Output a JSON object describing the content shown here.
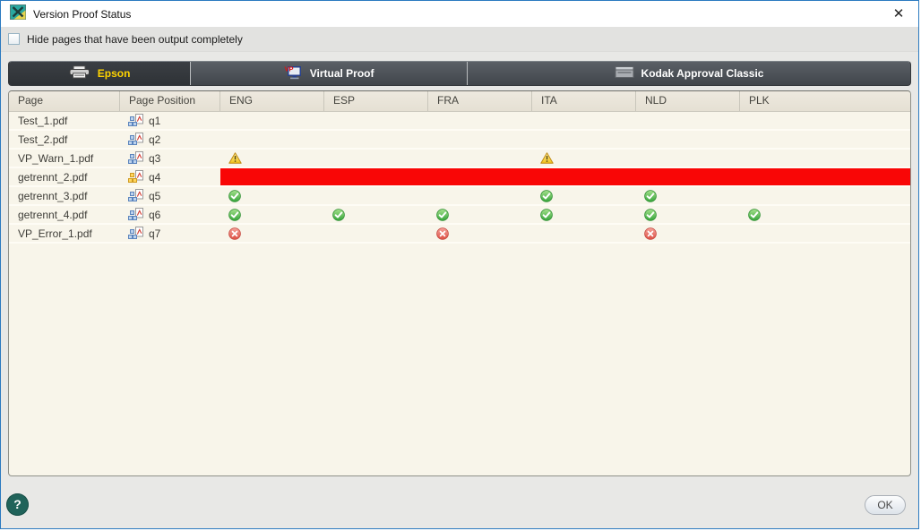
{
  "window": {
    "title": "Version Proof Status"
  },
  "icons": {
    "close": "✕"
  },
  "filter": {
    "label": "Hide pages that have been output completely",
    "checked": false
  },
  "tabs": [
    {
      "label": "Epson",
      "icon": "epson-printer-icon",
      "active": true
    },
    {
      "label": "Virtual Proof",
      "icon": "virtual-proof-monitor-icon",
      "active": false
    },
    {
      "label": "Kodak Approval Classic",
      "icon": "kodak-proofer-icon",
      "active": false
    }
  ],
  "table": {
    "columns": [
      "Page",
      "Page Position",
      "ENG",
      "ESP",
      "FRA",
      "ITA",
      "NLD",
      "PLK"
    ],
    "rows": [
      {
        "page": "Test_1.pdf",
        "position": "q1",
        "position_icon": "pdf-page-icon",
        "full_row_error": false,
        "statuses": [
          "",
          "",
          "",
          "",
          "",
          ""
        ]
      },
      {
        "page": "Test_2.pdf",
        "position": "q2",
        "position_icon": "pdf-page-icon",
        "full_row_error": false,
        "statuses": [
          "",
          "",
          "",
          "",
          "",
          ""
        ]
      },
      {
        "page": "VP_Warn_1.pdf",
        "position": "q3",
        "position_icon": "pdf-page-icon",
        "full_row_error": false,
        "statuses": [
          "warning",
          "",
          "",
          "warning",
          "",
          ""
        ]
      },
      {
        "page": "getrennt_2.pdf",
        "position": "q4",
        "position_icon": "pdf-multi-page-icon",
        "full_row_error": true,
        "statuses": [
          "",
          "",
          "",
          "",
          "",
          ""
        ]
      },
      {
        "page": "getrennt_3.pdf",
        "position": "q5",
        "position_icon": "pdf-page-icon",
        "full_row_error": false,
        "statuses": [
          "ok",
          "",
          "",
          "ok",
          "ok",
          ""
        ]
      },
      {
        "page": "getrennt_4.pdf",
        "position": "q6",
        "position_icon": "pdf-page-icon",
        "full_row_error": false,
        "statuses": [
          "ok",
          "ok",
          "ok",
          "ok",
          "ok",
          "ok"
        ]
      },
      {
        "page": "VP_Error_1.pdf",
        "position": "q7",
        "position_icon": "pdf-page-icon",
        "full_row_error": false,
        "statuses": [
          "error",
          "",
          "error",
          "",
          "error",
          ""
        ]
      }
    ]
  },
  "footer": {
    "help_label": "?",
    "ok_label": "OK"
  },
  "colors": {
    "error_bar": "#f90606",
    "status_ok": "#3aa83e",
    "status_error": "#dd4f44",
    "status_warning": "#f3c21a",
    "active_tab_text": "#ffd400",
    "window_border": "#2b7ac0"
  }
}
